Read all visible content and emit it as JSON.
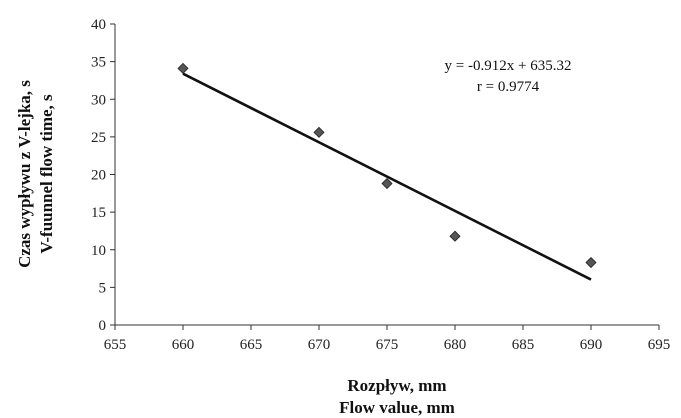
{
  "chart_data": {
    "type": "scatter",
    "title": "",
    "xlabel_lines": [
      "Rozpływ, mm",
      "Flow value, mm"
    ],
    "ylabel_lines": [
      "Czas wypływu z V-lejka, s",
      "V-fuunnel flow time, s"
    ],
    "xlim": [
      655,
      695
    ],
    "ylim": [
      0,
      40
    ],
    "x_ticks": [
      655,
      660,
      665,
      670,
      675,
      680,
      685,
      690,
      695
    ],
    "y_ticks": [
      0,
      5,
      10,
      15,
      20,
      25,
      30,
      35,
      40
    ],
    "grid": false,
    "legend": "none",
    "marker": "diamond",
    "marker_color": "#555555",
    "series": [
      {
        "values": [
          {
            "x": 660,
            "y": 34.1
          },
          {
            "x": 670,
            "y": 25.6
          },
          {
            "x": 675,
            "y": 18.8
          },
          {
            "x": 680,
            "y": 11.8
          },
          {
            "x": 690,
            "y": 8.3
          }
        ]
      }
    ],
    "trendline": {
      "slope": -0.912,
      "intercept": 635.32,
      "x_range": [
        660,
        690
      ],
      "color": "#111111",
      "equation_label": "y = -0.912x + 635.32",
      "r_label": "r = 0.9774"
    }
  }
}
